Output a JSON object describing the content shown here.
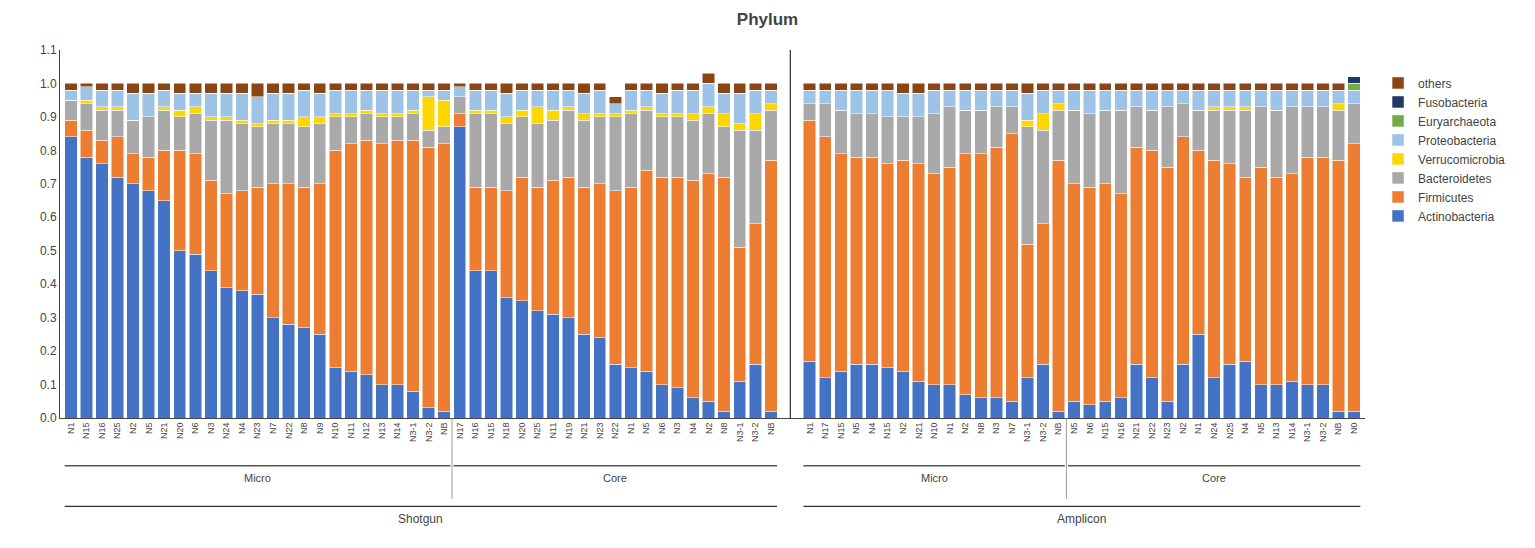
{
  "chart_data": {
    "type": "bar",
    "title": "Phylum",
    "stacked": true,
    "grid": false,
    "legend": "right",
    "categories": [
      "N1",
      "N15",
      "N16",
      "N25",
      "N2",
      "N5",
      "N21",
      "N20",
      "N6",
      "N3",
      "N24",
      "N4",
      "N23",
      "N7",
      "N22",
      "N8",
      "N9",
      "N10",
      "N11",
      "N12",
      "N13",
      "N14",
      "N3-1",
      "N3-2",
      "NB",
      "N17",
      "N16",
      "N15",
      "N18",
      "N20",
      "N25",
      "N11",
      "N19",
      "N21",
      "N23",
      "N22",
      "N1",
      "N5",
      "N6",
      "N3",
      "N4",
      "N2",
      "N8",
      "N3-1",
      "N3-2",
      "NB",
      "N1",
      "N17",
      "N15",
      "N5",
      "N4",
      "N15",
      "N2",
      "N21",
      "N10",
      "N1",
      "N2",
      "N8",
      "N3",
      "N7",
      "N3-1",
      "N3-2",
      "NB",
      "N5",
      "N6",
      "N15",
      "N16",
      "N21",
      "N22",
      "N23",
      "N2",
      "N1",
      "N24",
      "N25",
      "N4",
      "N5",
      "N13",
      "N14",
      "N3-1",
      "N3-2",
      "NB",
      "N0"
    ],
    "series": [
      {
        "name": "Actinobacteria",
        "color": "#4472C4",
        "values": [
          0.84,
          0.78,
          0.76,
          0.72,
          0.7,
          0.68,
          0.65,
          0.5,
          0.49,
          0.44,
          0.39,
          0.38,
          0.37,
          0.3,
          0.28,
          0.27,
          0.25,
          0.15,
          0.14,
          0.13,
          0.1,
          0.1,
          0.08,
          0.03,
          0.02,
          0.87,
          0.44,
          0.44,
          0.36,
          0.35,
          0.32,
          0.31,
          0.3,
          0.25,
          0.24,
          0.16,
          0.15,
          0.14,
          0.1,
          0.09,
          0.06,
          0.05,
          0.02,
          0.11,
          0.16,
          0.02,
          0.17,
          0.12,
          0.14,
          0.16,
          0.16,
          0.15,
          0.14,
          0.11,
          0.1,
          0.1,
          0.07,
          0.06,
          0.06,
          0.05,
          0.12,
          0.16,
          0.02,
          0.05,
          0.04,
          0.05,
          0.06,
          0.16,
          0.12,
          0.05,
          0.16,
          0.25,
          0.12,
          0.16,
          0.17,
          0.1,
          0.1,
          0.11,
          0.1,
          0.1,
          0.02,
          0.02
        ]
      },
      {
        "name": "Firmicutes",
        "color": "#ED7D31",
        "values": [
          0.05,
          0.08,
          0.07,
          0.12,
          0.09,
          0.1,
          0.15,
          0.3,
          0.3,
          0.27,
          0.28,
          0.3,
          0.32,
          0.4,
          0.42,
          0.42,
          0.45,
          0.65,
          0.68,
          0.7,
          0.72,
          0.73,
          0.75,
          0.78,
          0.8,
          0.04,
          0.25,
          0.25,
          0.32,
          0.37,
          0.37,
          0.4,
          0.42,
          0.44,
          0.46,
          0.52,
          0.54,
          0.6,
          0.62,
          0.63,
          0.65,
          0.68,
          0.7,
          0.4,
          0.42,
          0.75,
          0.72,
          0.72,
          0.65,
          0.62,
          0.62,
          0.61,
          0.63,
          0.65,
          0.63,
          0.65,
          0.72,
          0.73,
          0.75,
          0.8,
          0.4,
          0.42,
          0.75,
          0.65,
          0.65,
          0.65,
          0.61,
          0.65,
          0.68,
          0.7,
          0.68,
          0.55,
          0.65,
          0.6,
          0.55,
          0.65,
          0.62,
          0.62,
          0.68,
          0.68,
          0.75,
          0.8
        ]
      },
      {
        "name": "Bacteroidetes",
        "color": "#A9A9A9",
        "values": [
          0.06,
          0.08,
          0.09,
          0.08,
          0.1,
          0.12,
          0.12,
          0.1,
          0.12,
          0.18,
          0.22,
          0.2,
          0.18,
          0.18,
          0.18,
          0.18,
          0.18,
          0.1,
          0.08,
          0.08,
          0.08,
          0.07,
          0.08,
          0.05,
          0.05,
          0.05,
          0.22,
          0.22,
          0.2,
          0.18,
          0.19,
          0.18,
          0.2,
          0.2,
          0.2,
          0.22,
          0.22,
          0.18,
          0.18,
          0.18,
          0.18,
          0.18,
          0.15,
          0.35,
          0.28,
          0.15,
          0.05,
          0.1,
          0.13,
          0.13,
          0.13,
          0.14,
          0.13,
          0.14,
          0.18,
          0.18,
          0.13,
          0.13,
          0.12,
          0.08,
          0.35,
          0.28,
          0.15,
          0.22,
          0.22,
          0.22,
          0.25,
          0.12,
          0.12,
          0.18,
          0.1,
          0.12,
          0.15,
          0.16,
          0.2,
          0.18,
          0.2,
          0.2,
          0.15,
          0.15,
          0.15,
          0.12
        ]
      },
      {
        "name": "Verrucomicrobia",
        "color": "#FFD700",
        "values": [
          0.0,
          0.01,
          0.01,
          0.01,
          0.0,
          0.0,
          0.01,
          0.02,
          0.02,
          0.01,
          0.01,
          0.01,
          0.01,
          0.01,
          0.01,
          0.03,
          0.02,
          0.01,
          0.01,
          0.01,
          0.01,
          0.01,
          0.01,
          0.1,
          0.08,
          0.0,
          0.01,
          0.01,
          0.02,
          0.02,
          0.05,
          0.03,
          0.01,
          0.02,
          0.01,
          0.01,
          0.01,
          0.01,
          0.01,
          0.01,
          0.02,
          0.02,
          0.04,
          0.02,
          0.05,
          0.02,
          0.0,
          0.0,
          0.0,
          0.0,
          0.0,
          0.0,
          0.0,
          0.0,
          0.0,
          0.0,
          0.0,
          0.0,
          0.0,
          0.0,
          0.02,
          0.05,
          0.02,
          0.0,
          0.0,
          0.0,
          0.0,
          0.0,
          0.0,
          0.0,
          0.0,
          0.0,
          0.01,
          0.01,
          0.01,
          0.0,
          0.0,
          0.0,
          0.0,
          0.0,
          0.02,
          0.0
        ]
      },
      {
        "name": "Proteobacteria",
        "color": "#9DC3E6",
        "values": [
          0.03,
          0.04,
          0.05,
          0.05,
          0.08,
          0.07,
          0.05,
          0.05,
          0.04,
          0.07,
          0.07,
          0.08,
          0.08,
          0.08,
          0.08,
          0.08,
          0.07,
          0.07,
          0.07,
          0.06,
          0.07,
          0.07,
          0.06,
          0.02,
          0.03,
          0.03,
          0.06,
          0.06,
          0.07,
          0.06,
          0.05,
          0.06,
          0.05,
          0.06,
          0.07,
          0.03,
          0.06,
          0.05,
          0.06,
          0.07,
          0.07,
          0.07,
          0.06,
          0.09,
          0.07,
          0.04,
          0.04,
          0.04,
          0.06,
          0.07,
          0.07,
          0.08,
          0.07,
          0.07,
          0.07,
          0.05,
          0.06,
          0.06,
          0.05,
          0.05,
          0.08,
          0.07,
          0.04,
          0.06,
          0.07,
          0.06,
          0.06,
          0.05,
          0.06,
          0.05,
          0.04,
          0.06,
          0.05,
          0.05,
          0.05,
          0.05,
          0.06,
          0.05,
          0.05,
          0.05,
          0.04,
          0.04
        ]
      },
      {
        "name": "Euryarchaeota",
        "color": "#70AD47",
        "values": [
          0.0,
          0.0,
          0.0,
          0.0,
          0.0,
          0.0,
          0.0,
          0.0,
          0.0,
          0.0,
          0.0,
          0.0,
          0.0,
          0.0,
          0.0,
          0.0,
          0.0,
          0.0,
          0.0,
          0.0,
          0.0,
          0.0,
          0.0,
          0.0,
          0.0,
          0.0,
          0.0,
          0.0,
          0.0,
          0.0,
          0.0,
          0.0,
          0.0,
          0.0,
          0.0,
          0.0,
          0.0,
          0.0,
          0.0,
          0.0,
          0.0,
          0.0,
          0.0,
          0.0,
          0.0,
          0.0,
          0.0,
          0.0,
          0.0,
          0.0,
          0.0,
          0.0,
          0.0,
          0.0,
          0.0,
          0.0,
          0.0,
          0.0,
          0.0,
          0.0,
          0.0,
          0.0,
          0.0,
          0.0,
          0.0,
          0.0,
          0.0,
          0.0,
          0.0,
          0.0,
          0.0,
          0.0,
          0.0,
          0.0,
          0.0,
          0.0,
          0.0,
          0.0,
          0.0,
          0.0,
          0.0,
          0.02
        ]
      },
      {
        "name": "Fusobacteria",
        "color": "#1F3864",
        "values": [
          0.0,
          0.0,
          0.0,
          0.0,
          0.0,
          0.0,
          0.0,
          0.0,
          0.0,
          0.0,
          0.0,
          0.0,
          0.0,
          0.0,
          0.0,
          0.0,
          0.0,
          0.0,
          0.0,
          0.0,
          0.0,
          0.0,
          0.0,
          0.0,
          0.0,
          0.0,
          0.0,
          0.0,
          0.0,
          0.0,
          0.0,
          0.0,
          0.0,
          0.0,
          0.0,
          0.0,
          0.0,
          0.0,
          0.0,
          0.0,
          0.0,
          0.0,
          0.0,
          0.0,
          0.0,
          0.0,
          0.0,
          0.0,
          0.0,
          0.0,
          0.0,
          0.0,
          0.0,
          0.0,
          0.0,
          0.0,
          0.0,
          0.0,
          0.0,
          0.0,
          0.0,
          0.0,
          0.0,
          0.0,
          0.0,
          0.0,
          0.0,
          0.0,
          0.0,
          0.0,
          0.0,
          0.0,
          0.0,
          0.0,
          0.0,
          0.0,
          0.0,
          0.0,
          0.0,
          0.0,
          0.0,
          0.02
        ]
      },
      {
        "name": "others",
        "color": "#8B4513",
        "values": [
          0.02,
          0.01,
          0.02,
          0.02,
          0.03,
          0.03,
          0.02,
          0.03,
          0.03,
          0.03,
          0.03,
          0.03,
          0.04,
          0.03,
          0.03,
          0.02,
          0.03,
          0.02,
          0.02,
          0.02,
          0.02,
          0.02,
          0.02,
          0.02,
          0.02,
          0.01,
          0.02,
          0.02,
          0.03,
          0.02,
          0.02,
          0.02,
          0.02,
          0.03,
          0.02,
          0.02,
          0.02,
          0.02,
          0.03,
          0.02,
          0.02,
          0.03,
          0.03,
          0.03,
          0.02,
          0.02,
          0.02,
          0.02,
          0.02,
          0.02,
          0.02,
          0.02,
          0.03,
          0.03,
          0.02,
          0.02,
          0.02,
          0.02,
          0.02,
          0.02,
          0.03,
          0.02,
          0.02,
          0.02,
          0.02,
          0.02,
          0.02,
          0.02,
          0.02,
          0.02,
          0.02,
          0.02,
          0.02,
          0.02,
          0.02,
          0.02,
          0.02,
          0.02,
          0.02,
          0.02,
          0.02,
          0.0
        ]
      }
    ],
    "ylim": [
      0,
      1.1
    ],
    "yticks": [
      {
        "value": 0,
        "label": "0.0"
      },
      0.1,
      0.2,
      0.3,
      0.4,
      0.5,
      0.6,
      0.7,
      0.8,
      0.9,
      {
        "value": 1,
        "label": "1.0"
      },
      1.1
    ],
    "annotations": [
      {
        "text": "Shotgun",
        "span": [
          0,
          45
        ],
        "parts": [
          {
            "text": "Micro",
            "span": [
              0,
              24
            ]
          },
          {
            "text": "Core",
            "span": [
              25,
              45
            ]
          }
        ]
      },
      {
        "text": "Amplicon",
        "span": [
          46,
          81
        ],
        "parts": [
          {
            "text": "Micro",
            "span": [
              46,
              62
            ]
          },
          {
            "text": "Core",
            "span": [
              63,
              81
            ]
          }
        ]
      }
    ]
  }
}
